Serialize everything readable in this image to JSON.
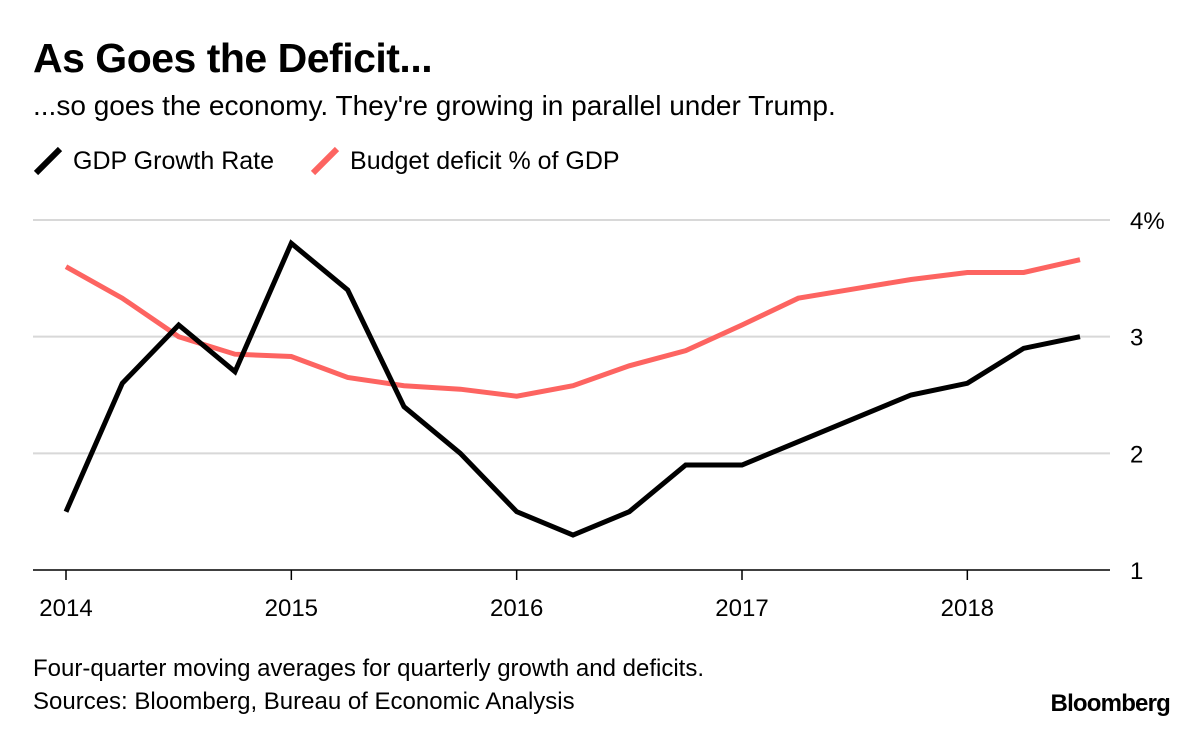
{
  "title": "As Goes the Deficit...",
  "subtitle": "...so goes the economy. They're growing in parallel under Trump.",
  "footnote": {
    "line1": "Four-quarter moving averages for quarterly growth and deficits.",
    "line2": "Sources: Bloomberg, Bureau of Economic Analysis"
  },
  "brand": "Bloomberg",
  "colors": {
    "gdp": "#000000",
    "deficit": "#fd6461",
    "grid": "#d8d8d8"
  },
  "chart_data": {
    "type": "line",
    "title": "As Goes the Deficit...",
    "xlabel": "",
    "ylabel": "",
    "xlim": [
      2014,
      2018.65
    ],
    "ylim": [
      1,
      4
    ],
    "y_ticks": [
      1,
      2,
      3,
      4
    ],
    "y_tick_labels": [
      "1",
      "2",
      "3",
      "4%"
    ],
    "x_ticks": [
      2014,
      2015,
      2016,
      2017,
      2018
    ],
    "x_tick_labels": [
      "2014",
      "2015",
      "2016",
      "2017",
      "2018"
    ],
    "grid": true,
    "legend_position": "top-left",
    "series": [
      {
        "name": "GDP Growth Rate",
        "x": [
          2014,
          2014.25,
          2014.5,
          2014.75,
          2015,
          2015.25,
          2015.5,
          2015.75,
          2016,
          2016.25,
          2016.5,
          2016.75,
          2017,
          2017.25,
          2017.5,
          2017.75,
          2018,
          2018.25,
          2018.5
        ],
        "values": [
          1.5,
          2.6,
          3.1,
          2.7,
          3.8,
          3.4,
          2.4,
          2.0,
          1.5,
          1.3,
          1.5,
          1.9,
          1.9,
          2.1,
          2.3,
          2.5,
          2.6,
          2.9,
          3.0
        ]
      },
      {
        "name": "Budget deficit % of GDP",
        "x": [
          2014,
          2014.25,
          2014.5,
          2014.75,
          2015,
          2015.25,
          2015.5,
          2015.75,
          2016,
          2016.25,
          2016.5,
          2016.75,
          2017,
          2017.25,
          2017.5,
          2017.75,
          2018,
          2018.25,
          2018.5
        ],
        "values": [
          3.6,
          3.33,
          3.0,
          2.85,
          2.83,
          2.65,
          2.58,
          2.55,
          2.49,
          2.58,
          2.75,
          2.88,
          3.1,
          3.33,
          3.41,
          3.49,
          3.55,
          3.55,
          3.66
        ]
      }
    ]
  }
}
